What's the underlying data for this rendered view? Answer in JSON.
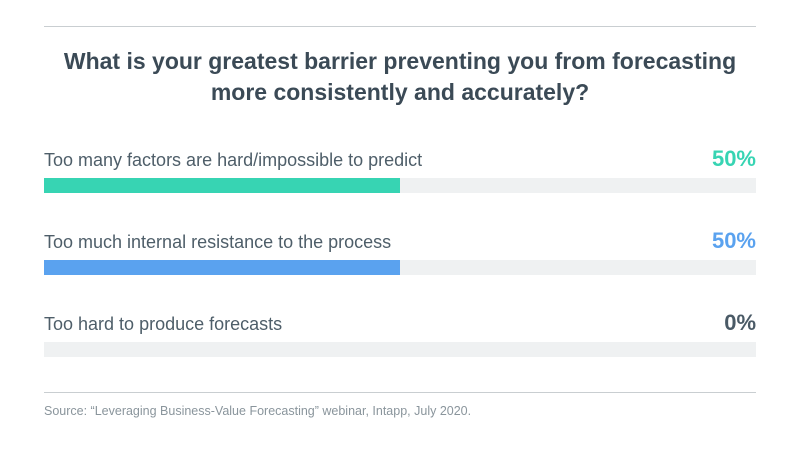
{
  "chart_data": {
    "type": "bar",
    "title": "What is your greatest barrier preventing you from forecasting more consistently and accurately?",
    "title_lines": [
      "What is your greatest barrier preventing you from forecasting",
      "more consistently and accurately?"
    ],
    "categories": [
      "Too many factors are hard/impossible to predict",
      "Too much internal resistance to the process",
      "Too hard to produce forecasts"
    ],
    "values": [
      50,
      50,
      0
    ],
    "value_labels": [
      "50%",
      "50%",
      "0%"
    ],
    "xlim": [
      0,
      100
    ],
    "colors": [
      "#37d4b3",
      "#5aa2ef",
      "#4a5a66"
    ],
    "track_color": "#eff1f2",
    "grid": false,
    "orientation": "horizontal"
  },
  "source": "Source: “Leveraging Business-Value Forecasting” webinar, Intapp, July 2020."
}
